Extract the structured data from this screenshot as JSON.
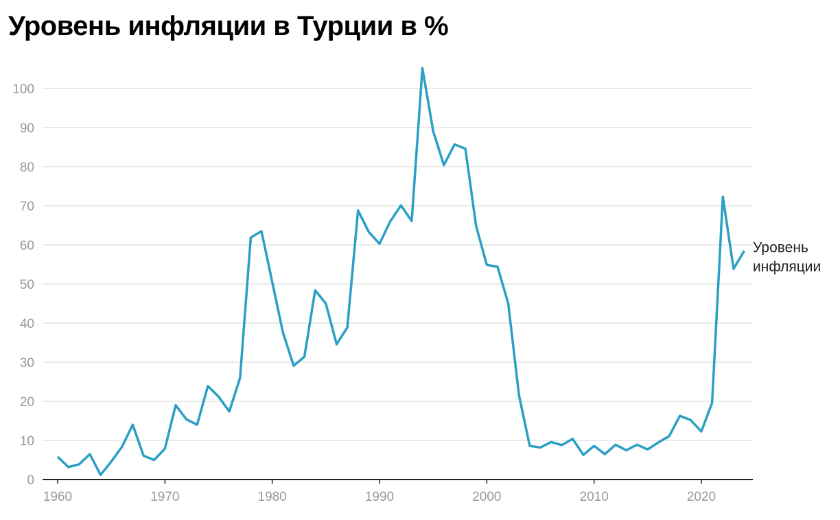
{
  "chart_data": {
    "type": "line",
    "title": "Уровень инфляции в Турции в %",
    "xlabel": "",
    "ylabel": "",
    "xlim": [
      1960,
      2024
    ],
    "ylim": [
      0,
      105
    ],
    "grid": true,
    "x_ticks": [
      "1960",
      "1970",
      "1980",
      "1990",
      "2000",
      "2010",
      "2020"
    ],
    "y_ticks": [
      "0",
      "10",
      "20",
      "30",
      "40",
      "50",
      "60",
      "70",
      "80",
      "90",
      "100"
    ],
    "color": "#2b9fc4",
    "series": [
      {
        "name": "Уровень инфляции",
        "x": [
          1960,
          1961,
          1962,
          1963,
          1964,
          1965,
          1966,
          1967,
          1968,
          1969,
          1970,
          1971,
          1972,
          1973,
          1974,
          1975,
          1976,
          1977,
          1978,
          1979,
          1980,
          1981,
          1982,
          1983,
          1984,
          1985,
          1986,
          1987,
          1988,
          1989,
          1990,
          1991,
          1992,
          1993,
          1994,
          1995,
          1996,
          1997,
          1998,
          1999,
          2000,
          2001,
          2002,
          2003,
          2004,
          2005,
          2006,
          2007,
          2008,
          2009,
          2010,
          2011,
          2012,
          2013,
          2014,
          2015,
          2016,
          2017,
          2018,
          2019,
          2020,
          2021,
          2022,
          2023,
          2024
        ],
        "values": [
          5.8,
          3.2,
          3.9,
          6.5,
          1.2,
          4.6,
          8.4,
          14.0,
          6.1,
          5.0,
          7.9,
          19.0,
          15.4,
          14.0,
          23.9,
          21.2,
          17.4,
          26.0,
          61.9,
          63.5,
          50.5,
          37.6,
          29.1,
          31.4,
          48.4,
          45.0,
          34.6,
          38.9,
          68.8,
          63.3,
          60.3,
          66.0,
          70.1,
          66.1,
          105.2,
          89.1,
          80.4,
          85.7,
          84.6,
          64.9,
          54.9,
          54.4,
          45.0,
          21.6,
          8.6,
          8.2,
          9.6,
          8.8,
          10.4,
          6.3,
          8.6,
          6.5,
          8.9,
          7.5,
          8.9,
          7.7,
          9.5,
          11.1,
          16.3,
          15.2,
          12.3,
          19.6,
          72.3,
          53.9,
          58.5
        ]
      }
    ]
  }
}
